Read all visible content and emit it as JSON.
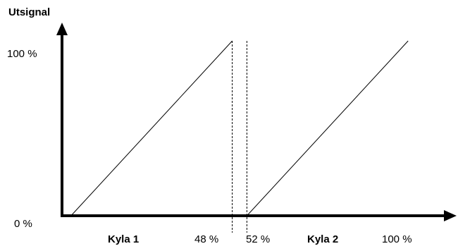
{
  "chart_data": {
    "type": "line",
    "ylabel": "Utsignal",
    "y_ticks": [
      "100 %",
      "0 %"
    ],
    "x_labels": {
      "stage1": "Kyla 1",
      "left_limit": "48 %",
      "right_limit": "52 %",
      "stage2": "Kyla 2",
      "end": "100 %"
    },
    "series": [
      {
        "name": "Kyla 1",
        "x": [
          4,
          48
        ],
        "y": [
          0,
          100
        ]
      },
      {
        "name": "Kyla 2",
        "x": [
          52,
          96
        ],
        "y": [
          0,
          100
        ]
      }
    ],
    "dashed_markers": [
      48,
      52
    ],
    "xlim": [
      0,
      100
    ],
    "ylim": [
      0,
      100
    ],
    "colors": {
      "line": "#000000",
      "axis": "#000000"
    }
  }
}
